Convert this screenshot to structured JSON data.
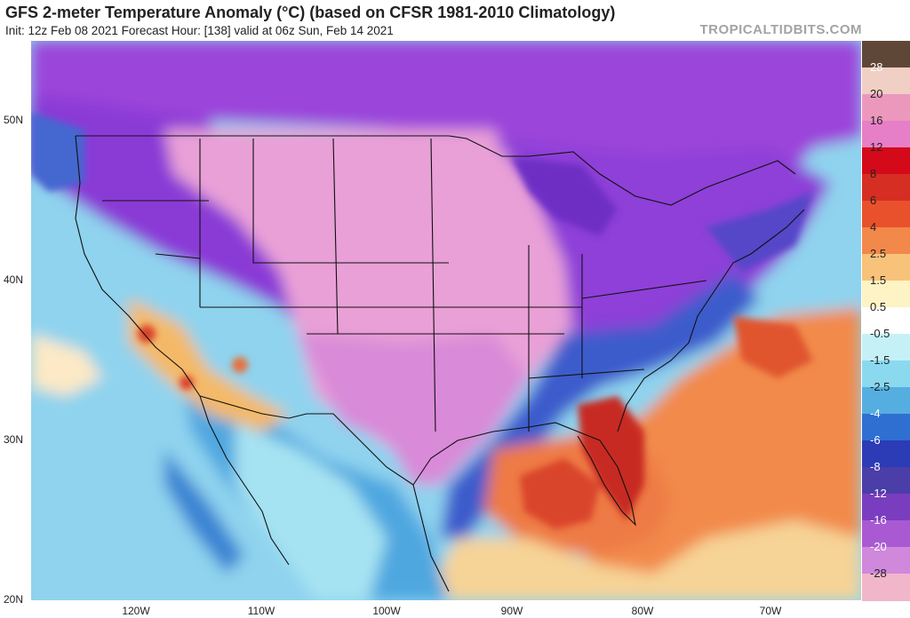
{
  "header": {
    "title": "GFS 2-meter Temperature Anomaly (°C) (based on CFSR 1981-2010 Climatology)",
    "subtitle": "Init: 12z Feb 08 2021   Forecast Hour: [138]   valid at 06z Sun, Feb 14 2021",
    "brand": "TROPICALTIDBITS.COM"
  },
  "axes": {
    "lat_labels": [
      "50N",
      "40N",
      "30N",
      "20N"
    ],
    "lon_labels": [
      "120W",
      "110W",
      "100W",
      "90W",
      "80W",
      "70W"
    ]
  },
  "colorbar": {
    "labels": [
      "28",
      "20",
      "16",
      "12",
      "8",
      "6",
      "4",
      "2.5",
      "1.5",
      "0.5",
      "-0.5",
      "-1.5",
      "-2.5",
      "-4",
      "-6",
      "-8",
      "-12",
      "-16",
      "-20",
      "-28"
    ],
    "colors": [
      "#5f4737",
      "#f0cfc4",
      "#ec98bd",
      "#e67fc7",
      "#d40a1a",
      "#d62e22",
      "#e8512c",
      "#f2884a",
      "#f8c27a",
      "#fdf3c4",
      "#ffffff",
      "#c5f1f6",
      "#8ad9ef",
      "#55aee0",
      "#2e6fd1",
      "#2c3bb6",
      "#4b3ea8",
      "#7a3dbf",
      "#a95ad2",
      "#cf88db",
      "#f1b6c9"
    ]
  },
  "map_colors": {
    "ocean_pacific": "#8fd3ee",
    "ocean_warm": "#f28a4b",
    "deep_warm": "#d9352a",
    "plains_cold": "#e7a0d6",
    "west_cold": "#a64ad6",
    "north_cold": "#8e3bd8",
    "gulf_coast": "#3a55c8",
    "southwest_warm": "#f7d18a"
  }
}
